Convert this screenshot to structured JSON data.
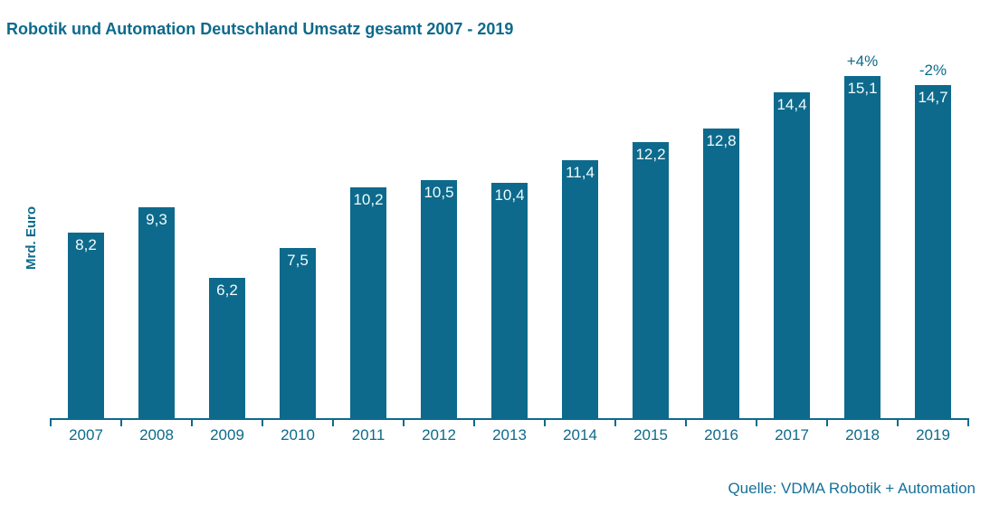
{
  "title": "Robotik und Automation Deutschland Umsatz gesamt 2007 - 2019",
  "ylabel": "Mrd. Euro",
  "source": "Quelle: VDMA Robotik + Automation",
  "colors": {
    "bar": "#0d6a8c",
    "axis": "#0d6a8c",
    "title_text": "#0d6a8c",
    "bar_label_text": "#f2fbfd",
    "background": "#ffffff"
  },
  "chart_data": {
    "type": "bar",
    "title": "Robotik und Automation Deutschland Umsatz gesamt 2007 - 2019",
    "xlabel": "",
    "ylabel": "Mrd. Euro",
    "categories": [
      "2007",
      "2008",
      "2009",
      "2010",
      "2011",
      "2012",
      "2013",
      "2014",
      "2015",
      "2016",
      "2017",
      "2018",
      "2019"
    ],
    "values": [
      8.2,
      9.3,
      6.2,
      7.5,
      10.2,
      10.5,
      10.4,
      11.4,
      12.2,
      12.8,
      14.4,
      15.1,
      14.7
    ],
    "value_labels": [
      "8,2",
      "9,3",
      "6,2",
      "7,5",
      "10,2",
      "10,5",
      "10,4",
      "11,4",
      "12,2",
      "12,8",
      "14,4",
      "15,1",
      "14,7"
    ],
    "annotations": [
      {
        "category": "2018",
        "label": "+4%"
      },
      {
        "category": "2019",
        "label": "-2%"
      }
    ],
    "ylim": [
      0,
      16
    ],
    "grid": false,
    "legend": "none",
    "source": "Quelle: VDMA Robotik + Automation"
  }
}
